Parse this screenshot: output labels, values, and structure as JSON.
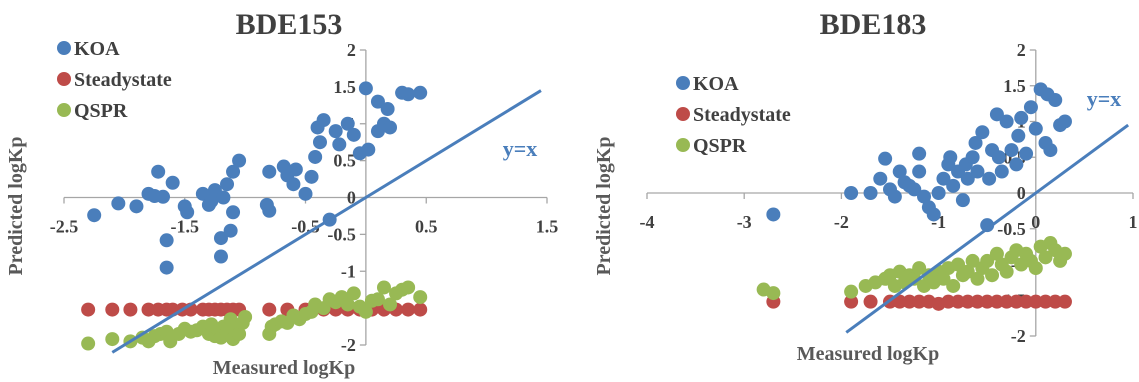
{
  "colors": {
    "koa": "#4a7ebb",
    "steady": "#be4b48",
    "qspr": "#98b954",
    "line": "#4a7ebb",
    "axis": "#a6a6a6"
  },
  "chart_data": [
    {
      "type": "scatter",
      "title": "BDE153",
      "xlabel": "Measured logKp",
      "ylabel": "Predicted logKp",
      "xlim": [
        -2.5,
        1.5
      ],
      "ylim": [
        -2,
        2
      ],
      "xticks": [
        "-2.5",
        "-1.5",
        "-0.5",
        "0.5",
        "1.5"
      ],
      "yticks": [
        "-2",
        "-1.5",
        "-1",
        "-0.5",
        "0",
        "0.5",
        "1",
        "1.5",
        "2"
      ],
      "annotation": "y=x",
      "legend": [
        "KOA",
        "Steadystate",
        "QSPR"
      ],
      "series": [
        {
          "name": "KOA",
          "points": [
            [
              -2.25,
              -0.24
            ],
            [
              -2.05,
              -0.08
            ],
            [
              -1.9,
              -0.12
            ],
            [
              -1.8,
              0.05
            ],
            [
              -1.75,
              0.02
            ],
            [
              -1.72,
              0.35
            ],
            [
              -1.68,
              0.01
            ],
            [
              -1.65,
              -0.58
            ],
            [
              -1.65,
              -0.95
            ],
            [
              -1.6,
              0.2
            ],
            [
              -1.5,
              -0.12
            ],
            [
              -1.48,
              -0.2
            ],
            [
              -1.35,
              0.05
            ],
            [
              -1.3,
              -0.1
            ],
            [
              -1.28,
              -0.05
            ],
            [
              -1.25,
              0.1
            ],
            [
              -1.2,
              -0.8
            ],
            [
              -1.2,
              -0.55
            ],
            [
              -1.18,
              0.0
            ],
            [
              -1.15,
              0.18
            ],
            [
              -1.12,
              -0.45
            ],
            [
              -1.1,
              -0.2
            ],
            [
              -1.1,
              0.35
            ],
            [
              -1.05,
              0.5
            ],
            [
              -0.82,
              -0.1
            ],
            [
              -0.8,
              -0.18
            ],
            [
              -0.8,
              0.35
            ],
            [
              -0.68,
              0.42
            ],
            [
              -0.65,
              0.3
            ],
            [
              -0.6,
              0.18
            ],
            [
              -0.58,
              0.38
            ],
            [
              -0.5,
              0.05
            ],
            [
              -0.45,
              0.28
            ],
            [
              -0.42,
              0.55
            ],
            [
              -0.4,
              0.95
            ],
            [
              -0.38,
              0.75
            ],
            [
              -0.35,
              1.05
            ],
            [
              -0.3,
              -0.3
            ],
            [
              -0.25,
              0.9
            ],
            [
              -0.22,
              0.72
            ],
            [
              -0.15,
              1.0
            ],
            [
              -0.1,
              0.85
            ],
            [
              -0.05,
              0.6
            ],
            [
              0.0,
              1.48
            ],
            [
              0.02,
              0.65
            ],
            [
              0.1,
              0.9
            ],
            [
              0.15,
              1.0
            ],
            [
              0.1,
              1.3
            ],
            [
              0.18,
              1.2
            ],
            [
              0.2,
              0.95
            ],
            [
              0.3,
              1.42
            ],
            [
              0.35,
              1.4
            ],
            [
              0.45,
              1.42
            ]
          ]
        },
        {
          "name": "Steadystate",
          "points": [
            [
              -2.3,
              -1.52
            ],
            [
              -2.1,
              -1.52
            ],
            [
              -1.95,
              -1.52
            ],
            [
              -1.8,
              -1.52
            ],
            [
              -1.72,
              -1.52
            ],
            [
              -1.65,
              -1.52
            ],
            [
              -1.6,
              -1.52
            ],
            [
              -1.52,
              -1.52
            ],
            [
              -1.45,
              -1.52
            ],
            [
              -1.35,
              -1.52
            ],
            [
              -1.3,
              -1.52
            ],
            [
              -1.25,
              -1.52
            ],
            [
              -1.2,
              -1.52
            ],
            [
              -1.15,
              -1.52
            ],
            [
              -1.1,
              -1.52
            ],
            [
              -1.05,
              -1.52
            ],
            [
              -0.8,
              -1.52
            ],
            [
              -0.65,
              -1.52
            ],
            [
              -0.5,
              -1.52
            ],
            [
              -0.45,
              -1.52
            ],
            [
              -0.35,
              -1.52
            ],
            [
              -0.25,
              -1.52
            ],
            [
              -0.15,
              -1.52
            ],
            [
              -0.05,
              -1.52
            ],
            [
              0.05,
              -1.52
            ],
            [
              0.15,
              -1.52
            ],
            [
              0.25,
              -1.52
            ],
            [
              0.35,
              -1.52
            ],
            [
              0.45,
              -1.52
            ]
          ]
        },
        {
          "name": "QSPR",
          "points": [
            [
              -2.3,
              -1.98
            ],
            [
              -2.1,
              -1.92
            ],
            [
              -1.95,
              -1.95
            ],
            [
              -1.85,
              -1.9
            ],
            [
              -1.8,
              -1.95
            ],
            [
              -1.75,
              -1.88
            ],
            [
              -1.7,
              -1.85
            ],
            [
              -1.65,
              -1.82
            ],
            [
              -1.62,
              -1.95
            ],
            [
              -1.55,
              -1.85
            ],
            [
              -1.5,
              -1.78
            ],
            [
              -1.45,
              -1.82
            ],
            [
              -1.4,
              -1.8
            ],
            [
              -1.35,
              -1.75
            ],
            [
              -1.3,
              -1.85
            ],
            [
              -1.28,
              -1.72
            ],
            [
              -1.25,
              -1.88
            ],
            [
              -1.22,
              -1.8
            ],
            [
              -1.2,
              -1.9
            ],
            [
              -1.18,
              -1.75
            ],
            [
              -1.15,
              -1.82
            ],
            [
              -1.12,
              -1.65
            ],
            [
              -1.1,
              -1.92
            ],
            [
              -1.08,
              -1.78
            ],
            [
              -1.05,
              -1.85
            ],
            [
              -1.02,
              -1.7
            ],
            [
              -1.0,
              -1.62
            ],
            [
              -0.8,
              -1.85
            ],
            [
              -0.78,
              -1.75
            ],
            [
              -0.75,
              -1.72
            ],
            [
              -0.7,
              -1.68
            ],
            [
              -0.65,
              -1.7
            ],
            [
              -0.6,
              -1.6
            ],
            [
              -0.55,
              -1.65
            ],
            [
              -0.5,
              -1.58
            ],
            [
              -0.45,
              -1.55
            ],
            [
              -0.42,
              -1.45
            ],
            [
              -0.35,
              -1.5
            ],
            [
              -0.3,
              -1.38
            ],
            [
              -0.25,
              -1.42
            ],
            [
              -0.2,
              -1.35
            ],
            [
              -0.15,
              -1.45
            ],
            [
              -0.1,
              -1.3
            ],
            [
              -0.05,
              -1.48
            ],
            [
              0.0,
              -1.55
            ],
            [
              0.05,
              -1.4
            ],
            [
              0.1,
              -1.38
            ],
            [
              0.15,
              -1.22
            ],
            [
              0.2,
              -1.45
            ],
            [
              0.25,
              -1.3
            ],
            [
              0.3,
              -1.25
            ],
            [
              0.35,
              -1.22
            ],
            [
              0.45,
              -1.35
            ]
          ]
        }
      ]
    },
    {
      "type": "scatter",
      "title": "BDE183",
      "xlabel": "Measured logKp",
      "ylabel": "Predicted logKp",
      "xlim": [
        -4,
        1
      ],
      "ylim": [
        -2,
        2
      ],
      "xticks": [
        "-4",
        "-3",
        "-2",
        "-1",
        "0",
        "1"
      ],
      "yticks": [
        "-2",
        "-1.5",
        "-1",
        "-0.5",
        "0",
        "0.5",
        "1",
        "1.5",
        "2"
      ],
      "annotation": "y=x",
      "legend": [
        "KOA",
        "Steadystate",
        "QSPR"
      ],
      "series": [
        {
          "name": "KOA",
          "points": [
            [
              -2.7,
              -0.3
            ],
            [
              -1.9,
              0.0
            ],
            [
              -1.7,
              0.0
            ],
            [
              -1.6,
              0.2
            ],
            [
              -1.55,
              0.48
            ],
            [
              -1.5,
              0.05
            ],
            [
              -1.45,
              -0.05
            ],
            [
              -1.4,
              0.3
            ],
            [
              -1.35,
              0.15
            ],
            [
              -1.3,
              0.1
            ],
            [
              -1.25,
              0.05
            ],
            [
              -1.2,
              0.55
            ],
            [
              -1.2,
              0.3
            ],
            [
              -1.15,
              -0.05
            ],
            [
              -1.1,
              -0.2
            ],
            [
              -1.05,
              -0.3
            ],
            [
              -1.0,
              0.0
            ],
            [
              -0.95,
              0.2
            ],
            [
              -0.9,
              0.4
            ],
            [
              -0.88,
              0.5
            ],
            [
              -0.85,
              0.1
            ],
            [
              -0.8,
              0.3
            ],
            [
              -0.75,
              -0.1
            ],
            [
              -0.72,
              0.4
            ],
            [
              -0.7,
              0.2
            ],
            [
              -0.65,
              0.5
            ],
            [
              -0.62,
              0.7
            ],
            [
              -0.6,
              0.3
            ],
            [
              -0.55,
              0.85
            ],
            [
              -0.5,
              -0.45
            ],
            [
              -0.48,
              0.2
            ],
            [
              -0.45,
              0.6
            ],
            [
              -0.4,
              1.1
            ],
            [
              -0.38,
              0.5
            ],
            [
              -0.35,
              0.3
            ],
            [
              -0.3,
              1.0
            ],
            [
              -0.25,
              0.6
            ],
            [
              -0.2,
              0.4
            ],
            [
              -0.18,
              0.8
            ],
            [
              -0.15,
              1.05
            ],
            [
              -0.1,
              0.55
            ],
            [
              -0.05,
              1.2
            ],
            [
              0.0,
              0.9
            ],
            [
              0.05,
              1.45
            ],
            [
              0.1,
              0.7
            ],
            [
              0.12,
              1.38
            ],
            [
              0.15,
              0.6
            ],
            [
              0.2,
              1.3
            ],
            [
              0.25,
              0.95
            ],
            [
              0.3,
              1.0
            ]
          ]
        },
        {
          "name": "Steadystate",
          "points": [
            [
              -2.7,
              -1.52
            ],
            [
              -1.9,
              -1.52
            ],
            [
              -1.7,
              -1.52
            ],
            [
              -1.5,
              -1.52
            ],
            [
              -1.4,
              -1.52
            ],
            [
              -1.3,
              -1.52
            ],
            [
              -1.2,
              -1.52
            ],
            [
              -1.1,
              -1.52
            ],
            [
              -1.0,
              -1.55
            ],
            [
              -0.9,
              -1.52
            ],
            [
              -0.8,
              -1.52
            ],
            [
              -0.7,
              -1.52
            ],
            [
              -0.6,
              -1.52
            ],
            [
              -0.5,
              -1.52
            ],
            [
              -0.4,
              -1.52
            ],
            [
              -0.3,
              -1.52
            ],
            [
              -0.2,
              -1.52
            ],
            [
              -0.1,
              -1.52
            ],
            [
              0.0,
              -1.52
            ],
            [
              0.1,
              -1.52
            ],
            [
              0.2,
              -1.52
            ],
            [
              0.3,
              -1.52
            ]
          ]
        },
        {
          "name": "QSPR",
          "points": [
            [
              -2.8,
              -1.35
            ],
            [
              -2.7,
              -1.4
            ],
            [
              -1.9,
              -1.38
            ],
            [
              -1.75,
              -1.3
            ],
            [
              -1.65,
              -1.25
            ],
            [
              -1.55,
              -1.2
            ],
            [
              -1.5,
              -1.15
            ],
            [
              -1.45,
              -1.3
            ],
            [
              -1.4,
              -1.1
            ],
            [
              -1.35,
              -1.25
            ],
            [
              -1.3,
              -1.15
            ],
            [
              -1.25,
              -1.2
            ],
            [
              -1.2,
              -1.05
            ],
            [
              -1.15,
              -1.3
            ],
            [
              -1.1,
              -1.15
            ],
            [
              -1.05,
              -1.25
            ],
            [
              -1.0,
              -1.1
            ],
            [
              -0.95,
              -1.2
            ],
            [
              -0.9,
              -1.05
            ],
            [
              -0.85,
              -1.3
            ],
            [
              -0.8,
              -1.0
            ],
            [
              -0.75,
              -1.15
            ],
            [
              -0.7,
              -1.1
            ],
            [
              -0.65,
              -0.95
            ],
            [
              -0.6,
              -1.2
            ],
            [
              -0.55,
              -1.05
            ],
            [
              -0.5,
              -0.95
            ],
            [
              -0.45,
              -1.15
            ],
            [
              -0.4,
              -0.85
            ],
            [
              -0.35,
              -1.0
            ],
            [
              -0.3,
              -1.1
            ],
            [
              -0.25,
              -0.9
            ],
            [
              -0.2,
              -0.8
            ],
            [
              -0.15,
              -1.0
            ],
            [
              -0.1,
              -0.85
            ],
            [
              -0.05,
              -0.95
            ],
            [
              0.0,
              -1.05
            ],
            [
              0.05,
              -0.75
            ],
            [
              0.1,
              -0.9
            ],
            [
              0.15,
              -0.7
            ],
            [
              0.2,
              -0.8
            ],
            [
              0.25,
              -0.95
            ],
            [
              0.3,
              -0.85
            ]
          ]
        }
      ]
    }
  ]
}
